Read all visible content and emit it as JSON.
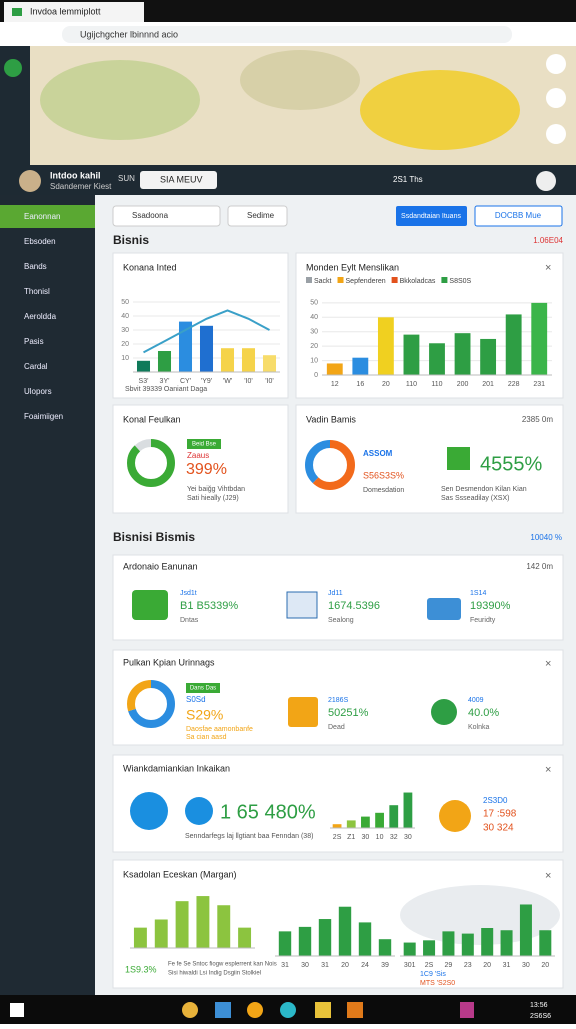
{
  "browser": {
    "tab_title": "Invdoa lemmiplott",
    "url": "Ugijchgcher lbinnnd acio"
  },
  "header": {
    "user_name": "Intdoo kahil",
    "user_role": "Sdandemer Kiest",
    "sun": "SUN",
    "search": "SIA MEUV",
    "time": "2S1 Ths"
  },
  "sidebar": {
    "items": [
      "Eanonnan",
      "Ebsoden",
      "Bands",
      "Thonisl",
      "Aeroldda",
      "Pasis",
      "Cardal",
      "Ulopors",
      "Foaimiigen"
    ]
  },
  "toolbar": {
    "dropdown": "Ssadoona",
    "search": "Sedime",
    "primary_button": "Ssdandtaian Ituans",
    "secondary_button": "DOCBB Mue"
  },
  "section1": {
    "title": "Bisnis",
    "value": "1.06E04"
  },
  "card1": {
    "title": "Konana Inted",
    "legend": "Sbvit 39339 Oaniant Daga",
    "chart": {
      "categories": [
        "S3'",
        "3Y'",
        "CY'",
        "'Y9'",
        "'W'",
        "'I0'",
        "'I0'"
      ],
      "values": [
        8,
        15,
        36,
        33,
        17,
        17,
        12
      ],
      "colors": [
        "#0f7a5a",
        "#2e9e44",
        "#2b8de0",
        "#1f6fd0",
        "#f5d34a",
        "#f5d34a",
        "#f7dc6a"
      ],
      "line": [
        14,
        22,
        30,
        38,
        44,
        38,
        30
      ],
      "line_color": "#3aa0c8",
      "ylim": [
        0,
        55
      ],
      "yticks": [
        10,
        20,
        30,
        40,
        50
      ]
    }
  },
  "card2": {
    "title": "Monden Eylt Menslikan",
    "legend": [
      {
        "name": "Sackt",
        "color": "#9aa0a6"
      },
      {
        "name": "Sepfenderen",
        "color": "#f2a516"
      },
      {
        "name": "Bkkoladcas",
        "color": "#e2521d"
      },
      {
        "name": "S8S0S",
        "color": "#2e9e44"
      }
    ],
    "chart": {
      "categories": [
        "12",
        "16",
        "20",
        "110",
        "110",
        "200",
        "201",
        "228",
        "231"
      ],
      "values": [
        8,
        12,
        40,
        28,
        22,
        29,
        25,
        42,
        50
      ],
      "colors": [
        "#f2a516",
        "#2b8de0",
        "#f0d020",
        "#2e9e44",
        "#2e9e44",
        "#2e9e44",
        "#2e9e44",
        "#2e9e44",
        "#3bb54a"
      ],
      "ylim": [
        0,
        52
      ],
      "yticks": [
        0,
        10,
        20,
        30,
        40,
        50
      ]
    }
  },
  "card3": {
    "title": "Konal Feulkan",
    "badge": "Beid Bse",
    "label": "Zaaus",
    "value": "399%",
    "note1": "Yei baiğg Vihtbdan",
    "note2": "Sati hieally (J29)",
    "donut": {
      "values": [
        88,
        12
      ],
      "colors": [
        "#3aaa35",
        "#d9dde0"
      ]
    }
  },
  "card4": {
    "title": "Vadin Bamis",
    "corner": "2385 0m",
    "label": "ASSOM",
    "sub_value": "S56S3S%",
    "sub_label": "Domesdation",
    "value": "4555%",
    "note1": "Sen Desmendon Kilan Kian",
    "note2": "Sas Ssseadilay (XSX)",
    "donut": {
      "values": [
        62,
        38
      ],
      "colors": [
        "#f26a1b",
        "#2b8de0"
      ]
    }
  },
  "section2": {
    "title": "Bisnisi Bismis",
    "value": "10040 %"
  },
  "cardA": {
    "title": "Ardonaio Eanunan",
    "corner": "142 0m",
    "items": [
      {
        "title": "Jsd1t",
        "value": "B1 B5339%",
        "sub": "Dntas"
      },
      {
        "title": "Jd11",
        "value": "1674.5396",
        "sub": "Sealong"
      },
      {
        "title": "1S14",
        "value": "19390%",
        "sub": "Feuridty"
      }
    ]
  },
  "cardB": {
    "title": "Pulkan Kpian Urinnags",
    "badge": "Dans Das",
    "label": "S0Sd",
    "value": "S29%",
    "note1": "Daosfae aamonbanfe",
    "note2": "Sa cian aasd",
    "donut": {
      "values": [
        70,
        30
      ],
      "colors": [
        "#2b8de0",
        "#f2a516"
      ]
    },
    "items": [
      {
        "title": "2186S",
        "value": "50251%",
        "sub": "Dead"
      },
      {
        "title": "4009",
        "value": "40.0%",
        "sub": "Kolnka"
      }
    ]
  },
  "cardC": {
    "title": "Wiankdamiankian Inkaikan",
    "value": "1 65 480%",
    "note": "Senndarfegs laj llgtiant baa Fenndan (38)",
    "chart": {
      "categories": [
        "2S",
        "Z1",
        "30",
        "10",
        "32",
        "30"
      ],
      "values": [
        3,
        6,
        9,
        12,
        18,
        28
      ],
      "colors": [
        "#f2a516",
        "#8cc43f",
        "#3aaa35",
        "#3aaa35",
        "#2e9e44",
        "#2e9e44"
      ],
      "ylim": [
        0,
        30
      ]
    },
    "side_title": "2S3D0",
    "side_value1": "17 :598",
    "side_value2": "30 324"
  },
  "cardD": {
    "title": "Ksadolan Eceskan (Margan)",
    "caption": "1S9.3%",
    "note1": "Fe fe Se Sntoc fiogw esplerrent kan Nois",
    "note2": "Sisi hiwaldi Lsi Indig Dsgiin Stolkiel",
    "chart_a": {
      "values": [
        20,
        28,
        46,
        51,
        42,
        20
      ],
      "color": "#8cc43f",
      "ylim": [
        0,
        55
      ]
    },
    "chart_b": {
      "categories": [
        "31",
        "30",
        "31",
        "20",
        "24",
        "39"
      ],
      "values": [
        22,
        26,
        33,
        44,
        30,
        15
      ],
      "color": "#2e9e44",
      "ylim": [
        0,
        50
      ]
    },
    "chart_c": {
      "categories": [
        "301",
        "2S",
        "29",
        "23",
        "20",
        "31",
        "30",
        "20"
      ],
      "values": [
        12,
        14,
        22,
        20,
        25,
        23,
        46,
        23
      ],
      "colors": [
        "#2e9e44",
        "#2e9e44",
        "#2e9e44",
        "#2e9e44",
        "#2e9e44",
        "#2e9e44",
        "#2e9e44",
        "#2e9e44"
      ],
      "ylim": [
        0,
        50
      ]
    },
    "sub1": "1C9 'Sis",
    "sub2": "MTS 'S2S0"
  },
  "taskbar": {
    "time": "13:56",
    "date": "2S6S6"
  }
}
